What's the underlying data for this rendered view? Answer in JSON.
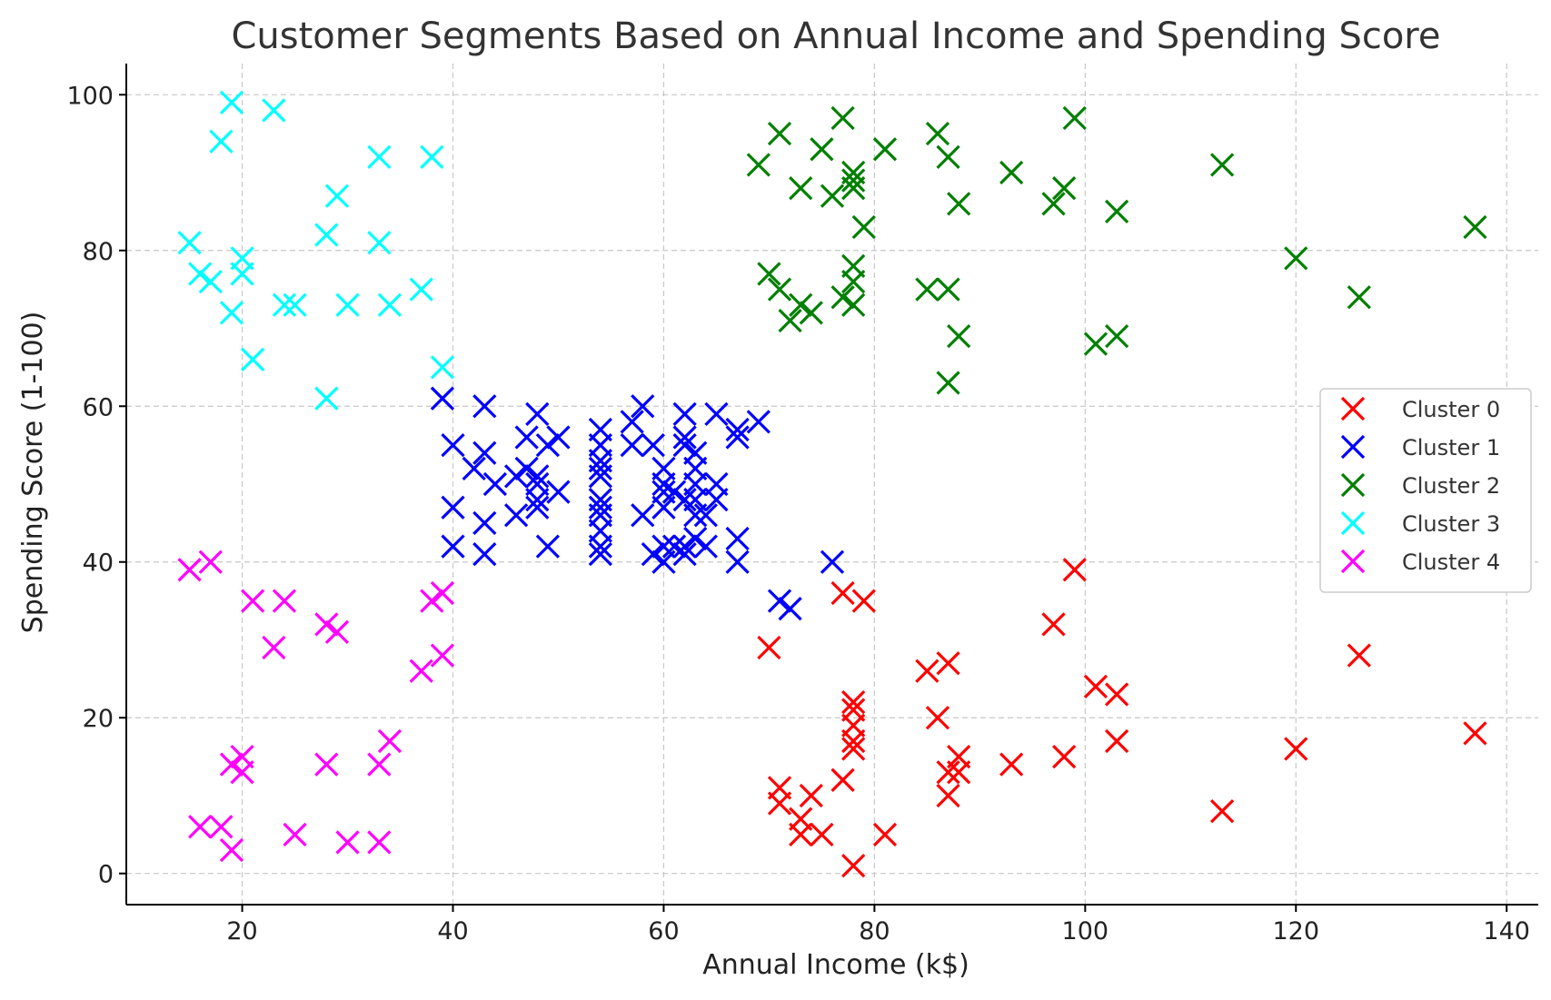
{
  "chart_data": {
    "type": "scatter",
    "title": "Customer Segments Based on Annual Income and Spending Score",
    "xlabel": "Annual Income (k$)",
    "ylabel": "Spending Score (1-100)",
    "xlim": [
      9,
      143
    ],
    "ylim": [
      -4,
      104
    ],
    "xticks": [
      20,
      40,
      60,
      80,
      100,
      120,
      140
    ],
    "yticks": [
      0,
      20,
      40,
      60,
      80,
      100
    ],
    "grid": true,
    "legend": "center-right",
    "marker": "x",
    "series": [
      {
        "name": "Cluster 0",
        "color": "#ff0000",
        "points": [
          [
            70,
            29
          ],
          [
            71,
            11
          ],
          [
            71,
            9
          ],
          [
            73,
            5
          ],
          [
            73,
            7
          ],
          [
            74,
            10
          ],
          [
            75,
            5
          ],
          [
            77,
            12
          ],
          [
            77,
            36
          ],
          [
            78,
            22
          ],
          [
            78,
            17
          ],
          [
            78,
            16
          ],
          [
            78,
            1
          ],
          [
            78,
            19
          ],
          [
            78,
            21
          ],
          [
            79,
            35
          ],
          [
            81,
            5
          ],
          [
            85,
            26
          ],
          [
            86,
            20
          ],
          [
            87,
            27
          ],
          [
            87,
            13
          ],
          [
            87,
            10
          ],
          [
            88,
            13
          ],
          [
            88,
            15
          ],
          [
            93,
            14
          ],
          [
            97,
            32
          ],
          [
            98,
            15
          ],
          [
            99,
            39
          ],
          [
            101,
            24
          ],
          [
            103,
            17
          ],
          [
            103,
            23
          ],
          [
            113,
            8
          ],
          [
            120,
            16
          ],
          [
            126,
            28
          ],
          [
            137,
            18
          ]
        ]
      },
      {
        "name": "Cluster 1",
        "color": "#0000ff",
        "points": [
          [
            39,
            61
          ],
          [
            40,
            55
          ],
          [
            40,
            47
          ],
          [
            40,
            42
          ],
          [
            42,
            52
          ],
          [
            43,
            60
          ],
          [
            43,
            54
          ],
          [
            43,
            45
          ],
          [
            43,
            41
          ],
          [
            44,
            50
          ],
          [
            46,
            46
          ],
          [
            46,
            51
          ],
          [
            47,
            56
          ],
          [
            47,
            52
          ],
          [
            48,
            59
          ],
          [
            48,
            51
          ],
          [
            48,
            47
          ],
          [
            48,
            50
          ],
          [
            48,
            48
          ],
          [
            49,
            55
          ],
          [
            49,
            42
          ],
          [
            50,
            56
          ],
          [
            50,
            49
          ],
          [
            54,
            47
          ],
          [
            54,
            53
          ],
          [
            54,
            48
          ],
          [
            54,
            52
          ],
          [
            54,
            42
          ],
          [
            54,
            51
          ],
          [
            54,
            55
          ],
          [
            54,
            41
          ],
          [
            54,
            44
          ],
          [
            54,
            57
          ],
          [
            54,
            46
          ],
          [
            57,
            58
          ],
          [
            57,
            55
          ],
          [
            58,
            60
          ],
          [
            58,
            46
          ],
          [
            59,
            55
          ],
          [
            59,
            41
          ],
          [
            60,
            49
          ],
          [
            60,
            40
          ],
          [
            60,
            42
          ],
          [
            60,
            52
          ],
          [
            60,
            47
          ],
          [
            60,
            50
          ],
          [
            61,
            42
          ],
          [
            61,
            49
          ],
          [
            62,
            41
          ],
          [
            62,
            48
          ],
          [
            62,
            59
          ],
          [
            62,
            55
          ],
          [
            62,
            56
          ],
          [
            62,
            42
          ],
          [
            63,
            50
          ],
          [
            63,
            46
          ],
          [
            63,
            43
          ],
          [
            63,
            48
          ],
          [
            63,
            52
          ],
          [
            63,
            54
          ],
          [
            64,
            42
          ],
          [
            64,
            46
          ],
          [
            65,
            48
          ],
          [
            65,
            50
          ],
          [
            65,
            59
          ],
          [
            67,
            43
          ],
          [
            67,
            57
          ],
          [
            67,
            56
          ],
          [
            67,
            40
          ],
          [
            69,
            58
          ],
          [
            71,
            35
          ],
          [
            72,
            34
          ],
          [
            76,
            40
          ]
        ]
      },
      {
        "name": "Cluster 2",
        "color": "#008000",
        "points": [
          [
            69,
            91
          ],
          [
            70,
            77
          ],
          [
            71,
            95
          ],
          [
            71,
            75
          ],
          [
            72,
            71
          ],
          [
            73,
            88
          ],
          [
            73,
            73
          ],
          [
            74,
            72
          ],
          [
            75,
            93
          ],
          [
            76,
            87
          ],
          [
            77,
            97
          ],
          [
            77,
            74
          ],
          [
            78,
            90
          ],
          [
            78,
            88
          ],
          [
            78,
            89
          ],
          [
            78,
            78
          ],
          [
            78,
            73
          ],
          [
            78,
            76
          ],
          [
            79,
            83
          ],
          [
            81,
            93
          ],
          [
            85,
            75
          ],
          [
            86,
            95
          ],
          [
            87,
            63
          ],
          [
            87,
            75
          ],
          [
            87,
            92
          ],
          [
            88,
            86
          ],
          [
            88,
            69
          ],
          [
            93,
            90
          ],
          [
            97,
            86
          ],
          [
            98,
            88
          ],
          [
            99,
            97
          ],
          [
            101,
            68
          ],
          [
            103,
            85
          ],
          [
            103,
            69
          ],
          [
            113,
            91
          ],
          [
            120,
            79
          ],
          [
            126,
            74
          ],
          [
            137,
            83
          ]
        ]
      },
      {
        "name": "Cluster 3",
        "color": "#00ffff",
        "points": [
          [
            15,
            81
          ],
          [
            16,
            77
          ],
          [
            17,
            76
          ],
          [
            18,
            94
          ],
          [
            19,
            72
          ],
          [
            19,
            99
          ],
          [
            20,
            77
          ],
          [
            20,
            79
          ],
          [
            21,
            66
          ],
          [
            23,
            98
          ],
          [
            24,
            73
          ],
          [
            25,
            73
          ],
          [
            28,
            82
          ],
          [
            28,
            61
          ],
          [
            29,
            87
          ],
          [
            30,
            73
          ],
          [
            33,
            92
          ],
          [
            33,
            81
          ],
          [
            34,
            73
          ],
          [
            37,
            75
          ],
          [
            38,
            92
          ],
          [
            39,
            65
          ]
        ]
      },
      {
        "name": "Cluster 4",
        "color": "#ff00ff",
        "points": [
          [
            15,
            39
          ],
          [
            16,
            6
          ],
          [
            17,
            40
          ],
          [
            18,
            6
          ],
          [
            19,
            3
          ],
          [
            19,
            14
          ],
          [
            20,
            15
          ],
          [
            20,
            13
          ],
          [
            21,
            35
          ],
          [
            23,
            29
          ],
          [
            24,
            35
          ],
          [
            25,
            5
          ],
          [
            28,
            14
          ],
          [
            28,
            32
          ],
          [
            29,
            31
          ],
          [
            30,
            4
          ],
          [
            33,
            4
          ],
          [
            33,
            14
          ],
          [
            34,
            17
          ],
          [
            37,
            26
          ],
          [
            38,
            35
          ],
          [
            39,
            36
          ],
          [
            39,
            28
          ]
        ]
      }
    ]
  }
}
